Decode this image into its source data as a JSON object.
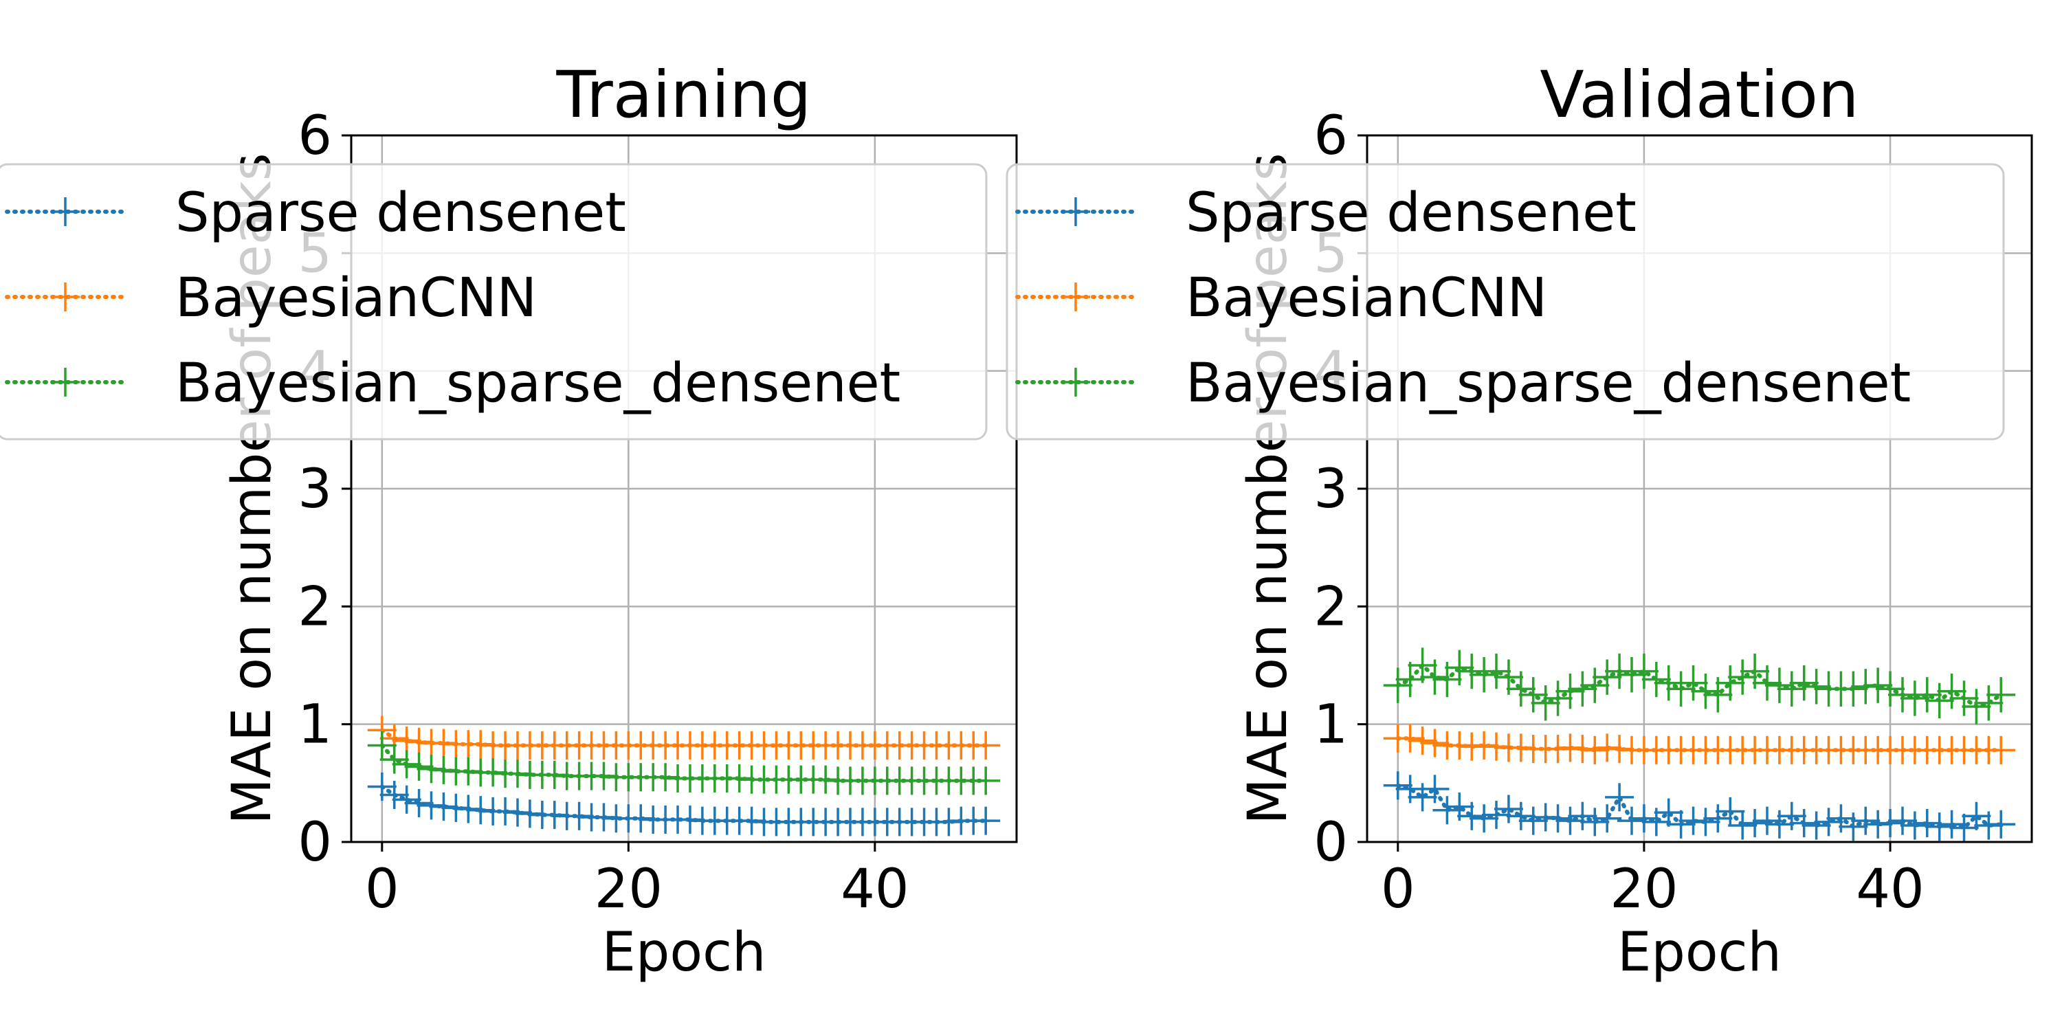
{
  "colors": {
    "Sparse densenet": "#1f77b4",
    "BayesianCNN": "#ff7f0e",
    "Bayesian_sparse_densenet": "#2ca02c",
    "grid": "#b0b0b0"
  },
  "chart_data": [
    {
      "type": "line",
      "title": "Training",
      "xlabel": "Epoch",
      "ylabel": "MAE on number of peaks",
      "xlim": [
        -2.5,
        51.5
      ],
      "ylim": [
        0,
        6
      ],
      "xticks": [
        0,
        20,
        40
      ],
      "yticks": [
        0,
        1,
        2,
        3,
        4,
        5,
        6
      ],
      "grid": true,
      "legend_position": "top",
      "markers": "plus with error bars",
      "line_style": "dotted",
      "series": [
        {
          "name": "Sparse densenet",
          "x": [
            0,
            1,
            2,
            3,
            4,
            5,
            6,
            7,
            8,
            9,
            10,
            11,
            12,
            13,
            14,
            15,
            16,
            17,
            18,
            19,
            20,
            21,
            22,
            23,
            24,
            25,
            26,
            27,
            28,
            29,
            30,
            31,
            32,
            33,
            34,
            35,
            36,
            37,
            38,
            39,
            40,
            41,
            42,
            43,
            44,
            45,
            46,
            47,
            48,
            49
          ],
          "y": [
            0.47,
            0.4,
            0.36,
            0.33,
            0.31,
            0.3,
            0.29,
            0.28,
            0.27,
            0.26,
            0.26,
            0.25,
            0.24,
            0.23,
            0.23,
            0.22,
            0.22,
            0.21,
            0.21,
            0.2,
            0.2,
            0.2,
            0.19,
            0.19,
            0.19,
            0.19,
            0.18,
            0.18,
            0.18,
            0.18,
            0.18,
            0.17,
            0.17,
            0.17,
            0.17,
            0.17,
            0.17,
            0.17,
            0.17,
            0.17,
            0.17,
            0.17,
            0.17,
            0.17,
            0.17,
            0.17,
            0.17,
            0.18,
            0.18,
            0.18
          ],
          "err": 0.12
        },
        {
          "name": "BayesianCNN",
          "x": [
            0,
            1,
            2,
            3,
            4,
            5,
            6,
            7,
            8,
            9,
            10,
            11,
            12,
            13,
            14,
            15,
            16,
            17,
            18,
            19,
            20,
            21,
            22,
            23,
            24,
            25,
            26,
            27,
            28,
            29,
            30,
            31,
            32,
            33,
            34,
            35,
            36,
            37,
            38,
            39,
            40,
            41,
            42,
            43,
            44,
            45,
            46,
            47,
            48,
            49
          ],
          "y": [
            0.95,
            0.88,
            0.86,
            0.85,
            0.84,
            0.84,
            0.83,
            0.83,
            0.83,
            0.82,
            0.82,
            0.82,
            0.82,
            0.82,
            0.82,
            0.82,
            0.82,
            0.82,
            0.82,
            0.82,
            0.82,
            0.82,
            0.82,
            0.82,
            0.82,
            0.82,
            0.82,
            0.82,
            0.82,
            0.82,
            0.82,
            0.82,
            0.82,
            0.82,
            0.82,
            0.82,
            0.82,
            0.82,
            0.82,
            0.82,
            0.82,
            0.82,
            0.82,
            0.82,
            0.82,
            0.82,
            0.82,
            0.82,
            0.82,
            0.82
          ],
          "err": 0.12
        },
        {
          "name": "Bayesian_sparse_densenet",
          "x": [
            0,
            1,
            2,
            3,
            4,
            5,
            6,
            7,
            8,
            9,
            10,
            11,
            12,
            13,
            14,
            15,
            16,
            17,
            18,
            19,
            20,
            21,
            22,
            23,
            24,
            25,
            26,
            27,
            28,
            29,
            30,
            31,
            32,
            33,
            34,
            35,
            36,
            37,
            38,
            39,
            40,
            41,
            42,
            43,
            44,
            45,
            46,
            47,
            48,
            49
          ],
          "y": [
            0.82,
            0.7,
            0.66,
            0.64,
            0.62,
            0.61,
            0.6,
            0.6,
            0.59,
            0.59,
            0.58,
            0.58,
            0.57,
            0.57,
            0.57,
            0.56,
            0.56,
            0.56,
            0.56,
            0.55,
            0.55,
            0.55,
            0.55,
            0.55,
            0.54,
            0.54,
            0.54,
            0.54,
            0.54,
            0.54,
            0.53,
            0.53,
            0.53,
            0.53,
            0.53,
            0.53,
            0.53,
            0.52,
            0.52,
            0.52,
            0.52,
            0.52,
            0.52,
            0.52,
            0.52,
            0.52,
            0.52,
            0.52,
            0.52,
            0.52
          ],
          "err": 0.12
        }
      ]
    },
    {
      "type": "line",
      "title": "Validation",
      "xlabel": "Epoch",
      "ylabel": "MAE on number of peaks",
      "xlim": [
        -2.5,
        51.5
      ],
      "ylim": [
        0,
        6
      ],
      "xticks": [
        0,
        20,
        40
      ],
      "yticks": [
        0,
        1,
        2,
        3,
        4,
        5,
        6
      ],
      "grid": true,
      "legend_position": "top",
      "markers": "plus with error bars",
      "line_style": "dotted",
      "series": [
        {
          "name": "Sparse densenet",
          "x": [
            0,
            1,
            2,
            3,
            4,
            5,
            6,
            7,
            8,
            9,
            10,
            11,
            12,
            13,
            14,
            15,
            16,
            17,
            18,
            19,
            20,
            21,
            22,
            23,
            24,
            25,
            26,
            27,
            28,
            29,
            30,
            31,
            32,
            33,
            34,
            35,
            36,
            37,
            38,
            39,
            40,
            41,
            42,
            43,
            44,
            45,
            46,
            47,
            48,
            49
          ],
          "y": [
            0.48,
            0.45,
            0.38,
            0.45,
            0.27,
            0.3,
            0.22,
            0.2,
            0.23,
            0.28,
            0.22,
            0.18,
            0.21,
            0.2,
            0.18,
            0.22,
            0.17,
            0.2,
            0.38,
            0.18,
            0.2,
            0.17,
            0.25,
            0.15,
            0.18,
            0.17,
            0.2,
            0.26,
            0.14,
            0.16,
            0.18,
            0.15,
            0.22,
            0.16,
            0.14,
            0.17,
            0.2,
            0.13,
            0.18,
            0.15,
            0.16,
            0.18,
            0.14,
            0.16,
            0.13,
            0.15,
            0.12,
            0.22,
            0.14,
            0.15
          ],
          "err": 0.12
        },
        {
          "name": "BayesianCNN",
          "x": [
            0,
            1,
            2,
            3,
            4,
            5,
            6,
            7,
            8,
            9,
            10,
            11,
            12,
            13,
            14,
            15,
            16,
            17,
            18,
            19,
            20,
            21,
            22,
            23,
            24,
            25,
            26,
            27,
            28,
            29,
            30,
            31,
            32,
            33,
            34,
            35,
            36,
            37,
            38,
            39,
            40,
            41,
            42,
            43,
            44,
            45,
            46,
            47,
            48,
            49
          ],
          "y": [
            0.88,
            0.88,
            0.86,
            0.84,
            0.82,
            0.82,
            0.81,
            0.82,
            0.81,
            0.8,
            0.8,
            0.79,
            0.79,
            0.79,
            0.8,
            0.79,
            0.78,
            0.8,
            0.79,
            0.78,
            0.78,
            0.78,
            0.78,
            0.78,
            0.78,
            0.78,
            0.78,
            0.78,
            0.78,
            0.78,
            0.78,
            0.78,
            0.78,
            0.78,
            0.78,
            0.78,
            0.78,
            0.78,
            0.78,
            0.78,
            0.78,
            0.78,
            0.78,
            0.78,
            0.78,
            0.78,
            0.78,
            0.78,
            0.78,
            0.78
          ],
          "err": 0.12
        },
        {
          "name": "Bayesian_sparse_densenet",
          "x": [
            0,
            1,
            2,
            3,
            4,
            5,
            6,
            7,
            8,
            9,
            10,
            11,
            12,
            13,
            14,
            15,
            16,
            17,
            18,
            19,
            20,
            21,
            22,
            23,
            24,
            25,
            26,
            27,
            28,
            29,
            30,
            31,
            32,
            33,
            34,
            35,
            36,
            37,
            38,
            39,
            40,
            41,
            42,
            43,
            44,
            45,
            46,
            47,
            48,
            49
          ],
          "y": [
            1.33,
            1.38,
            1.5,
            1.4,
            1.38,
            1.48,
            1.45,
            1.42,
            1.45,
            1.4,
            1.3,
            1.25,
            1.18,
            1.22,
            1.28,
            1.3,
            1.33,
            1.4,
            1.45,
            1.42,
            1.45,
            1.38,
            1.35,
            1.3,
            1.35,
            1.28,
            1.25,
            1.35,
            1.4,
            1.45,
            1.35,
            1.33,
            1.3,
            1.35,
            1.32,
            1.3,
            1.3,
            1.3,
            1.32,
            1.33,
            1.3,
            1.25,
            1.22,
            1.25,
            1.2,
            1.28,
            1.22,
            1.15,
            1.18,
            1.25
          ],
          "err": 0.15
        }
      ]
    }
  ]
}
